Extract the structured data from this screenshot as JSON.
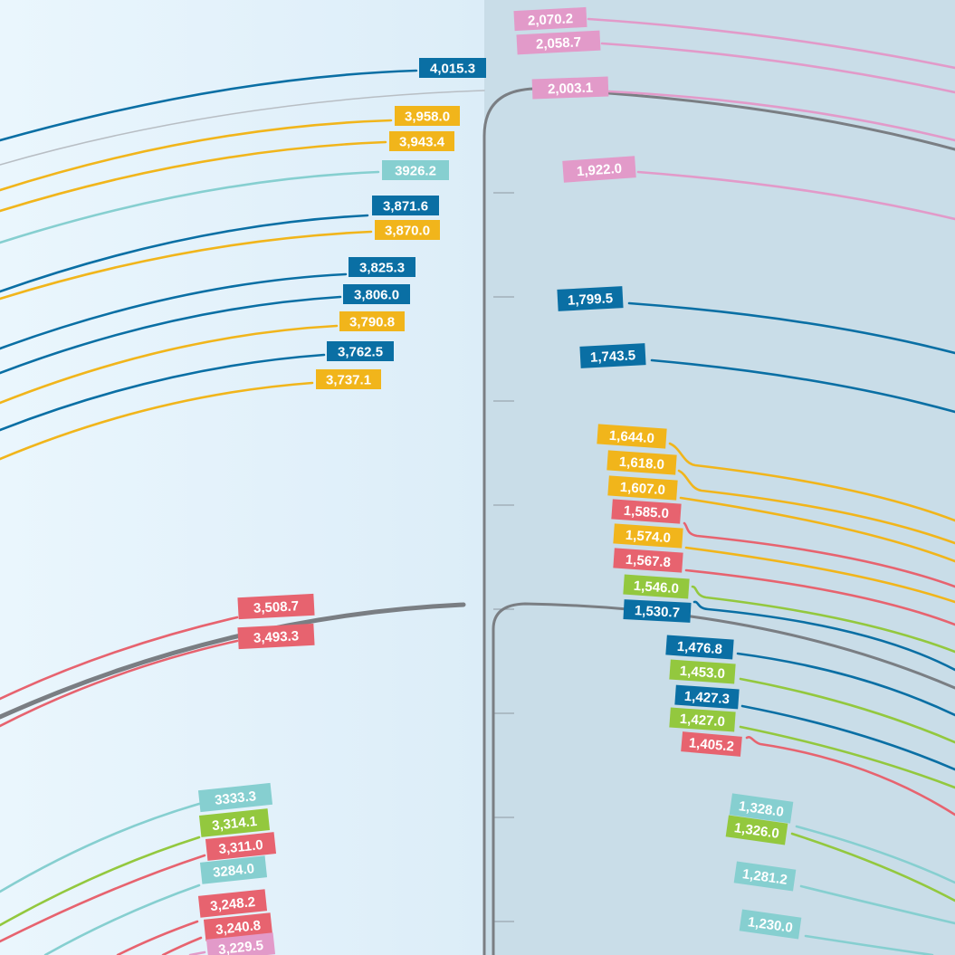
{
  "colors": {
    "background_left": "#e8f4fc",
    "background_right": "#c9dde8",
    "axis": "#7a7e83",
    "blue": "#0a6fa4",
    "yellow": "#f1b51b",
    "teal": "#86cfd0",
    "red": "#e7636f",
    "green": "#93c83e",
    "pink": "#e29ac9",
    "gray": "#b8bec4"
  },
  "lines": [
    {
      "id": "l-2070-2",
      "text": "2,070.2",
      "color": "pink"
    },
    {
      "id": "l-2058-7",
      "text": "2,058.7",
      "color": "pink"
    },
    {
      "id": "l-2003-1",
      "text": "2,003.1",
      "color": "pink"
    },
    {
      "id": "l-1922-0",
      "text": "1,922.0",
      "color": "pink"
    },
    {
      "id": "l-1799-5",
      "text": "1,799.5",
      "color": "blue"
    },
    {
      "id": "l-1743-5",
      "text": "1,743.5",
      "color": "blue"
    },
    {
      "id": "l-1644-0",
      "text": "1,644.0",
      "color": "yellow"
    },
    {
      "id": "l-1618-0",
      "text": "1,618.0",
      "color": "yellow"
    },
    {
      "id": "l-1607-0",
      "text": "1,607.0",
      "color": "yellow"
    },
    {
      "id": "l-1585-0",
      "text": "1,585.0",
      "color": "red"
    },
    {
      "id": "l-1574-0",
      "text": "1,574.0",
      "color": "yellow"
    },
    {
      "id": "l-1567-8",
      "text": "1,567.8",
      "color": "red"
    },
    {
      "id": "l-1546-0",
      "text": "1,546.0",
      "color": "green"
    },
    {
      "id": "l-1530-7",
      "text": "1,530.7",
      "color": "blue"
    },
    {
      "id": "l-1476-8",
      "text": "1,476.8",
      "color": "blue"
    },
    {
      "id": "l-1453-0",
      "text": "1,453.0",
      "color": "green"
    },
    {
      "id": "l-1427-3",
      "text": "1,427.3",
      "color": "blue"
    },
    {
      "id": "l-1427-0",
      "text": "1,427.0",
      "color": "green"
    },
    {
      "id": "l-1405-2",
      "text": "1,405.2",
      "color": "red"
    },
    {
      "id": "l-1328-0",
      "text": "1,328.0",
      "color": "teal"
    },
    {
      "id": "l-1326-0",
      "text": "1,326.0",
      "color": "green"
    },
    {
      "id": "l-1281-2",
      "text": "1,281.2",
      "color": "teal"
    },
    {
      "id": "l-1230-0",
      "text": "1,230.0",
      "color": "teal"
    },
    {
      "id": "l-4015-3",
      "text": "4,015.3",
      "color": "blue"
    },
    {
      "id": "l-3958-0",
      "text": "3,958.0",
      "color": "yellow"
    },
    {
      "id": "l-3943-4",
      "text": "3,943.4",
      "color": "yellow"
    },
    {
      "id": "l-3926-2",
      "text": "3926.2",
      "color": "teal"
    },
    {
      "id": "l-3871-6",
      "text": "3,871.6",
      "color": "blue"
    },
    {
      "id": "l-3870-0",
      "text": "3,870.0",
      "color": "yellow"
    },
    {
      "id": "l-3825-3",
      "text": "3,825.3",
      "color": "blue"
    },
    {
      "id": "l-3806-0",
      "text": "3,806.0",
      "color": "blue"
    },
    {
      "id": "l-3790-8",
      "text": "3,790.8",
      "color": "yellow"
    },
    {
      "id": "l-3762-5",
      "text": "3,762.5",
      "color": "blue"
    },
    {
      "id": "l-3737-1",
      "text": "3,737.1",
      "color": "yellow"
    },
    {
      "id": "l-3508-7",
      "text": "3,508.7",
      "color": "red"
    },
    {
      "id": "l-3493-3",
      "text": "3,493.3",
      "color": "red"
    },
    {
      "id": "l-3333-3",
      "text": "3333.3",
      "color": "teal"
    },
    {
      "id": "l-3314-1",
      "text": "3,314.1",
      "color": "green"
    },
    {
      "id": "l-3311-0",
      "text": "3,311.0",
      "color": "red"
    },
    {
      "id": "l-3284-0",
      "text": "3284.0",
      "color": "teal"
    },
    {
      "id": "l-3248-2",
      "text": "3,248.2",
      "color": "red"
    },
    {
      "id": "l-3240-8",
      "text": "3,240.8",
      "color": "red"
    },
    {
      "id": "l-3229-5",
      "text": "3,229.5",
      "color": "pink"
    }
  ]
}
